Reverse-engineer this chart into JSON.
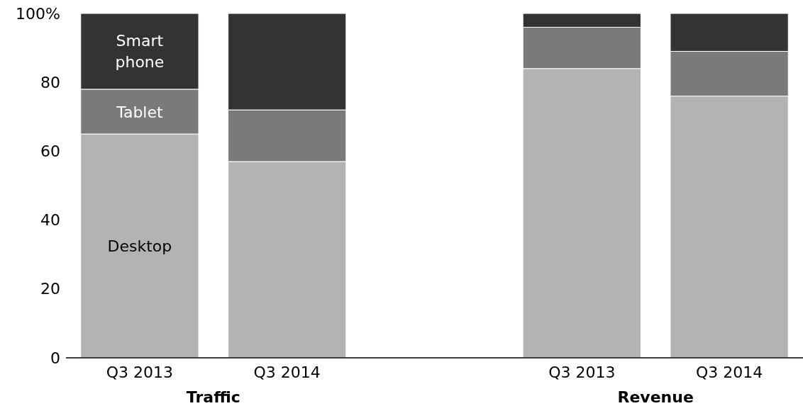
{
  "chart_data": {
    "type": "bar",
    "stacked": true,
    "categories": [
      "Q3 2013",
      "Q3 2014",
      null,
      "Q3 2013",
      "Q3 2014"
    ],
    "series": [
      {
        "name": "Desktop",
        "color": "#b3b3b3",
        "values": [
          65,
          57,
          null,
          84,
          76
        ]
      },
      {
        "name": "Tablet",
        "color": "#7a7a7a",
        "values": [
          13,
          15,
          null,
          12,
          13
        ]
      },
      {
        "name": "Smart phone",
        "color": "#333333",
        "values": [
          22,
          28,
          null,
          4,
          11
        ]
      }
    ],
    "ylim": [
      0,
      100
    ],
    "yticks": [
      0,
      20,
      40,
      60,
      80,
      {
        "value": 100,
        "label": "100%"
      }
    ],
    "grid": false,
    "legend": false,
    "annotations": [
      "Traffic",
      "Revenue"
    ]
  }
}
